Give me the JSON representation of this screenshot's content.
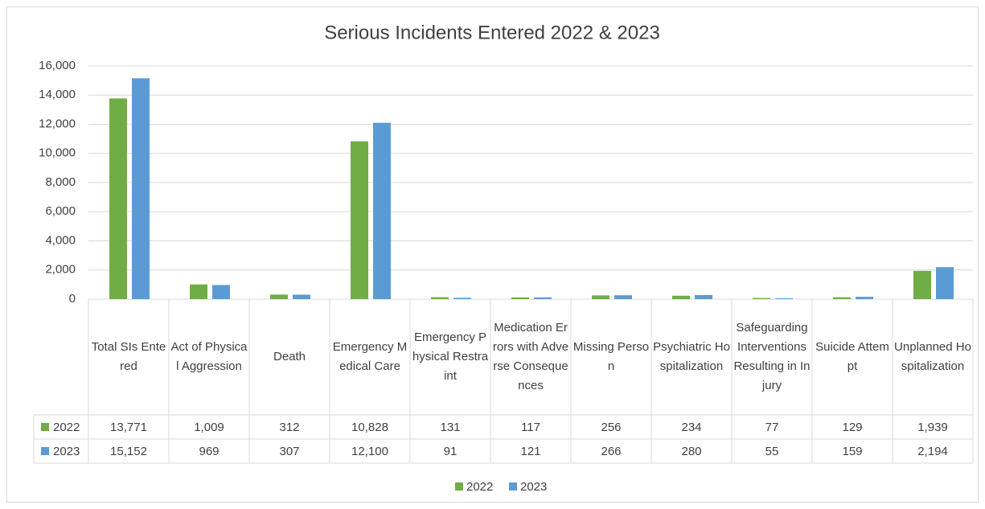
{
  "chart_data": {
    "type": "bar",
    "title": "Serious Incidents Entered 2022 & 2023",
    "categories": [
      "Total SIs Entered",
      "Act of Physical Aggression",
      "Death",
      "Emergency Medical Care",
      "Emergency Physical Restraint",
      "Medication Errors with Adverse Consequences",
      "Missing Person",
      "Psychiatric Hospitalization",
      "Safeguarding Interventions Resulting in Injury",
      "Suicide Attempt",
      "Unplanned Hospitalization"
    ],
    "series": [
      {
        "name": "2022",
        "color": "#70ad47",
        "values": [
          13771,
          1009,
          312,
          10828,
          131,
          117,
          256,
          234,
          77,
          129,
          1939
        ],
        "value_labels": [
          "13,771",
          "1,009",
          "312",
          "10,828",
          "131",
          "117",
          "256",
          "234",
          "77",
          "129",
          "1,939"
        ]
      },
      {
        "name": "2023",
        "color": "#5b9bd5",
        "values": [
          15152,
          969,
          307,
          12100,
          91,
          121,
          266,
          280,
          55,
          159,
          2194
        ],
        "value_labels": [
          "15,152",
          "969",
          "307",
          "12,100",
          "91",
          "121",
          "266",
          "280",
          "55",
          "159",
          "2,194"
        ]
      }
    ],
    "ylim": [
      0,
      16000
    ],
    "yticks": [
      0,
      {
        "value": 2000,
        "label": "2,000"
      },
      {
        "value": 4000,
        "label": "4,000"
      },
      {
        "value": 6000,
        "label": "6,000"
      },
      {
        "value": 8000,
        "label": "8,000"
      },
      {
        "value": 10000,
        "label": "10,000"
      },
      {
        "value": 12000,
        "label": "12,000"
      },
      {
        "value": 14000,
        "label": "14,000"
      },
      {
        "value": 16000,
        "label": "16,000"
      }
    ],
    "grid": true,
    "legend": "bottom"
  }
}
